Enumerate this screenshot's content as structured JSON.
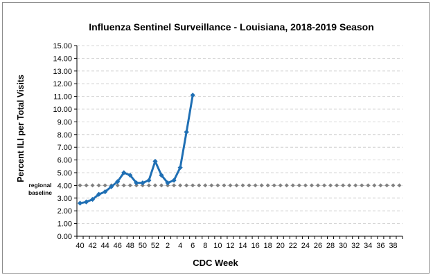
{
  "chart_data": {
    "type": "line",
    "title": "Influenza Sentinel Surveillance - Louisiana, 2018-2019 Season",
    "xlabel": "CDC Week",
    "ylabel": "Percent ILI per Total Visits",
    "ylim": [
      0,
      15
    ],
    "y_tick_step": 1,
    "x_tick_labels": [
      "40",
      "42",
      "44",
      "46",
      "48",
      "50",
      "52",
      "2",
      "4",
      "6",
      "8",
      "10",
      "12",
      "14",
      "16",
      "18",
      "20",
      "22",
      "24",
      "26",
      "28",
      "30",
      "32",
      "34",
      "36",
      "38"
    ],
    "n_weeks": 52,
    "series": [
      {
        "name": "Percent ILI",
        "color": "#1f6fb4",
        "weeks": [
          "40",
          "41",
          "42",
          "43",
          "44",
          "45",
          "46",
          "47",
          "48",
          "49",
          "50",
          "51",
          "52",
          "1",
          "2",
          "3",
          "4",
          "5",
          "6"
        ],
        "values": [
          2.6,
          2.7,
          2.9,
          3.3,
          3.5,
          3.9,
          4.3,
          5.0,
          4.8,
          4.2,
          4.2,
          4.4,
          5.9,
          4.8,
          4.2,
          4.4,
          5.4,
          8.2,
          11.1
        ]
      }
    ],
    "baseline": {
      "value": 4.0,
      "label_line1": "regional",
      "label_line2": "baseline",
      "color": "#808080"
    },
    "grid": true
  }
}
